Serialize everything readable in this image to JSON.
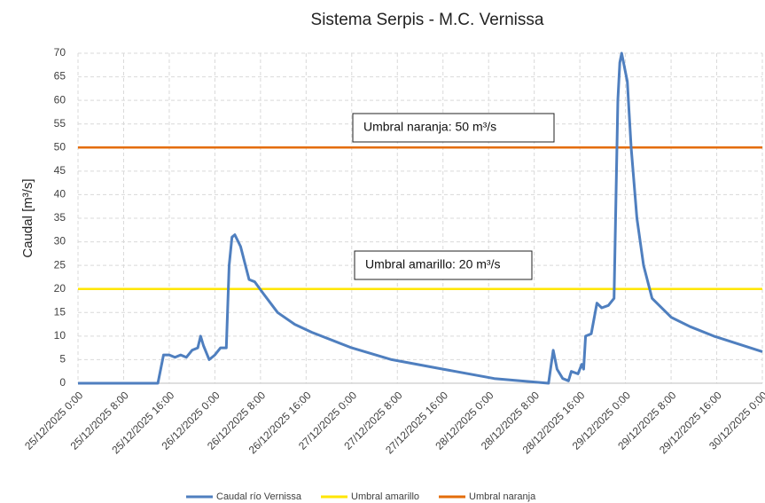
{
  "chart_data": {
    "type": "line",
    "title": "Sistema Serpis - M.C. Vernissa",
    "ylabel": "Caudal [m³/s]",
    "xlim": [
      "2025-12-25T00:00",
      "2025-12-30T00:00"
    ],
    "xticks": [
      {
        "value": "2025-12-25T00:00",
        "label": "25/12/2025 0:00"
      },
      {
        "value": "2025-12-25T08:00",
        "label": "25/12/2025 8:00"
      },
      {
        "value": "2025-12-25T16:00",
        "label": "25/12/2025 16:00"
      },
      {
        "value": "2025-12-26T00:00",
        "label": "26/12/2025 0:00"
      },
      {
        "value": "2025-12-26T08:00",
        "label": "26/12/2025 8:00"
      },
      {
        "value": "2025-12-26T16:00",
        "label": "26/12/2025 16:00"
      },
      {
        "value": "2025-12-27T00:00",
        "label": "27/12/2025 0:00"
      },
      {
        "value": "2025-12-27T08:00",
        "label": "27/12/2025 8:00"
      },
      {
        "value": "2025-12-27T16:00",
        "label": "27/12/2025 16:00"
      },
      {
        "value": "2025-12-28T00:00",
        "label": "28/12/2025 0:00"
      },
      {
        "value": "2025-12-28T08:00",
        "label": "28/12/2025 8:00"
      },
      {
        "value": "2025-12-28T16:00",
        "label": "28/12/2025 16:00"
      },
      {
        "value": "2025-12-29T00:00",
        "label": "29/12/2025 0:00"
      },
      {
        "value": "2025-12-29T08:00",
        "label": "29/12/2025 8:00"
      },
      {
        "value": "2025-12-29T16:00",
        "label": "29/12/2025 16:00"
      },
      {
        "value": "2025-12-30T00:00",
        "label": "30/12/2025 0:00"
      }
    ],
    "ylim": [
      0,
      70
    ],
    "yticks": [
      0,
      5,
      10,
      15,
      20,
      25,
      30,
      35,
      40,
      45,
      50,
      55,
      60,
      65,
      70
    ],
    "grid": true,
    "legend": "bottom",
    "series": [
      {
        "name": "Caudal río Vernissa",
        "color": "#4f7fbf",
        "x": [
          "2025-12-25T00:00",
          "2025-12-25T14:00",
          "2025-12-25T14:30",
          "2025-12-25T15:00",
          "2025-12-25T16:00",
          "2025-12-25T17:00",
          "2025-12-25T18:00",
          "2025-12-25T19:00",
          "2025-12-25T20:00",
          "2025-12-25T21:00",
          "2025-12-25T21:30",
          "2025-12-25T22:00",
          "2025-12-25T23:00",
          "2025-12-26T00:00",
          "2025-12-26T01:00",
          "2025-12-26T02:00",
          "2025-12-26T02:30",
          "2025-12-26T03:00",
          "2025-12-26T03:30",
          "2025-12-26T04:30",
          "2025-12-26T06:00",
          "2025-12-26T07:00",
          "2025-12-26T08:30",
          "2025-12-26T11:00",
          "2025-12-26T14:00",
          "2025-12-26T17:00",
          "2025-12-27T00:00",
          "2025-12-27T07:00",
          "2025-12-27T16:00",
          "2025-12-28T01:00",
          "2025-12-28T10:30",
          "2025-12-28T11:20",
          "2025-12-28T12:00",
          "2025-12-28T13:00",
          "2025-12-28T14:00",
          "2025-12-28T14:30",
          "2025-12-28T15:40",
          "2025-12-28T16:20",
          "2025-12-28T16:40",
          "2025-12-28T17:00",
          "2025-12-28T18:00",
          "2025-12-28T19:00",
          "2025-12-28T19:50",
          "2025-12-28T21:00",
          "2025-12-28T22:00",
          "2025-12-28T22:40",
          "2025-12-28T23:00",
          "2025-12-28T23:20",
          "2025-12-29T00:20",
          "2025-12-29T01:00",
          "2025-12-29T02:00",
          "2025-12-29T03:10",
          "2025-12-29T04:40",
          "2025-12-29T08:00",
          "2025-12-29T11:20",
          "2025-12-29T15:30",
          "2025-12-29T19:20",
          "2025-12-30T00:00"
        ],
        "values": [
          0,
          0,
          3,
          6,
          6,
          5.5,
          6,
          5.5,
          7,
          7.5,
          10,
          8,
          5,
          6,
          7.5,
          7.5,
          25,
          31,
          31.5,
          29,
          22,
          21.5,
          19,
          15,
          12.5,
          10.8,
          7.5,
          5,
          3,
          1,
          0,
          7,
          3,
          1,
          0.5,
          2.5,
          2,
          4,
          3,
          10,
          10.5,
          17,
          16,
          16.5,
          18,
          60,
          68,
          70,
          64,
          50,
          35,
          25,
          18,
          14,
          12,
          10,
          8.5,
          6.7
        ]
      },
      {
        "name": "Umbral amarillo",
        "color": "#ffe600",
        "x": [
          "2025-12-25T00:00",
          "2025-12-30T00:00"
        ],
        "values": [
          20,
          20
        ]
      },
      {
        "name": "Umbral naranja",
        "color": "#e46c0a",
        "x": [
          "2025-12-25T00:00",
          "2025-12-30T00:00"
        ],
        "values": [
          50,
          50
        ]
      }
    ],
    "annotations": [
      "Umbral naranja: 50 m³/s",
      "Umbral amarillo: 20 m³/s"
    ]
  }
}
